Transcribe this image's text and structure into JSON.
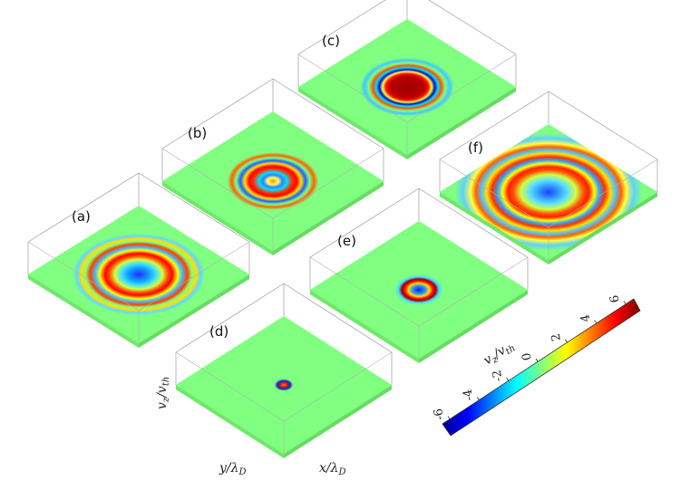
{
  "chart_data": {
    "type": "heatmap",
    "title": "",
    "colormap": "jet",
    "grid": false,
    "panels": [
      {
        "label": "(a)",
        "pattern": "wide concentric rings with negative (blue) center"
      },
      {
        "label": "(b)",
        "pattern": "concentric rings with small positive (orange) center"
      },
      {
        "label": "(c)",
        "pattern": "compact ring with strongly positive (dark red) center"
      },
      {
        "label": "(d)",
        "pattern": "small localized pulse"
      },
      {
        "label": "(e)",
        "pattern": "compact ring with negative (blue) core"
      },
      {
        "label": "(f)",
        "pattern": "widest concentric rings with negative (blue) center"
      }
    ],
    "axes": {
      "xlabel": "x/λ_D",
      "ylabel": "y/λ_D",
      "zlabel": "v_z/v_th"
    },
    "colorbar": {
      "label": "v_z/v_th",
      "range": [
        -6.5,
        6.5
      ],
      "ticks": [
        -6,
        -4,
        -2,
        0,
        2,
        4,
        6
      ],
      "tick_labels": [
        "-6",
        "-4",
        "-2",
        "0",
        "2",
        "4",
        "6"
      ],
      "colors": [
        "#00008f",
        "#0000ff",
        "#00ffff",
        "#80ff80",
        "#ffff00",
        "#ff0000",
        "#800000"
      ]
    },
    "background_value_color": "#80ff7a"
  },
  "labels": {
    "x_axis": "x/λ",
    "x_axis_sub": "D",
    "y_axis": "y/λ",
    "y_axis_sub": "D",
    "z_axis": "v",
    "z_axis_sub_z": "z",
    "z_axis_mid": "/v",
    "z_axis_sub_th": "th"
  }
}
